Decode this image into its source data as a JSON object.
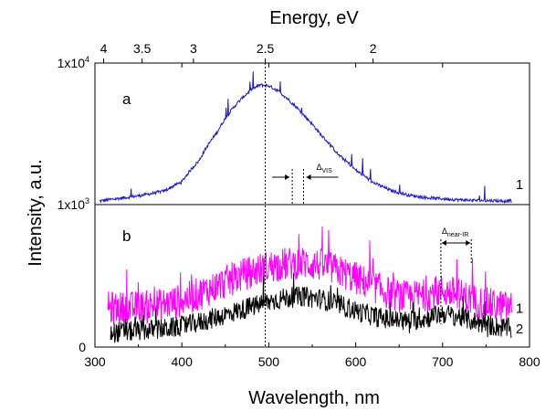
{
  "chart_data": {
    "type": "line",
    "xlabel": "Wavelength, nm",
    "ylabel": "Intensity, a.u.",
    "top_axis_label": "Energy, eV",
    "xlim": [
      300,
      800
    ],
    "x_ticks": [
      "300",
      "400",
      "500",
      "600",
      "700",
      "800"
    ],
    "energy_ticks": [
      {
        "label": "4",
        "ev": 4
      },
      {
        "label": "3.5",
        "ev": 3.5
      },
      {
        "label": "3",
        "ev": 3
      },
      {
        "label": "2.5",
        "ev": 2.5
      },
      {
        "label": "2",
        "ev": 2
      }
    ],
    "vline_nm": 496,
    "panels": [
      {
        "label": "a",
        "scale": "log",
        "ylim": [
          1000,
          10000
        ],
        "y_ticks": [
          {
            "value": 10000,
            "base": "1x10",
            "exp": "4"
          },
          {
            "value": 1000,
            "base": "1x10",
            "exp": "3"
          }
        ],
        "series": [
          {
            "label": "1",
            "color": "#1a1acc",
            "x": [
              305,
              320,
              340,
              360,
              380,
              400,
              420,
              440,
              460,
              480,
              490,
              500,
              510,
              520,
              540,
              560,
              580,
              600,
              620,
              640,
              660,
              680,
              700,
              720,
              740,
              760,
              780
            ],
            "y": [
              1060,
              1090,
              1130,
              1180,
              1250,
              1450,
              2050,
              3200,
              4900,
              6500,
              7000,
              6900,
              6400,
              5700,
              4300,
              3100,
              2250,
              1750,
              1430,
              1260,
              1170,
              1120,
              1100,
              1080,
              1070,
              1065,
              1060
            ]
          }
        ],
        "annotation": {
          "text": "Δ",
          "subscript": "VIS",
          "x1": 527,
          "x2": 540
        }
      },
      {
        "label": "b",
        "scale": "linear",
        "ylim": [
          0,
          1
        ],
        "y_ticks": [
          {
            "value": 0,
            "label": "0"
          }
        ],
        "series": [
          {
            "label": "1",
            "color": "#ff00ff",
            "x": [
              315,
              340,
              360,
              380,
              400,
              420,
              440,
              460,
              480,
              500,
              520,
              540,
              560,
              580,
              600,
              620,
              640,
              660,
              680,
              700,
              720,
              740,
              760,
              780
            ],
            "y": [
              0.3,
              0.3,
              0.31,
              0.33,
              0.36,
              0.41,
              0.47,
              0.53,
              0.58,
              0.62,
              0.64,
              0.65,
              0.63,
              0.59,
              0.53,
              0.47,
              0.41,
              0.38,
              0.4,
              0.44,
              0.4,
              0.35,
              0.32,
              0.3
            ]
          },
          {
            "label": "2",
            "color": "#000000",
            "x": [
              318,
              340,
              360,
              380,
              400,
              420,
              440,
              460,
              480,
              500,
              520,
              540,
              560,
              580,
              600,
              620,
              640,
              660,
              680,
              700,
              720,
              740,
              760,
              780
            ],
            "y": [
              0.11,
              0.12,
              0.13,
              0.14,
              0.16,
              0.19,
              0.23,
              0.27,
              0.31,
              0.35,
              0.38,
              0.39,
              0.37,
              0.33,
              0.28,
              0.24,
              0.21,
              0.2,
              0.22,
              0.26,
              0.23,
              0.19,
              0.16,
              0.14
            ]
          }
        ],
        "annotation": {
          "text": "Δ",
          "subscript": "near-IR",
          "x1": 698,
          "x2": 733
        }
      }
    ]
  }
}
